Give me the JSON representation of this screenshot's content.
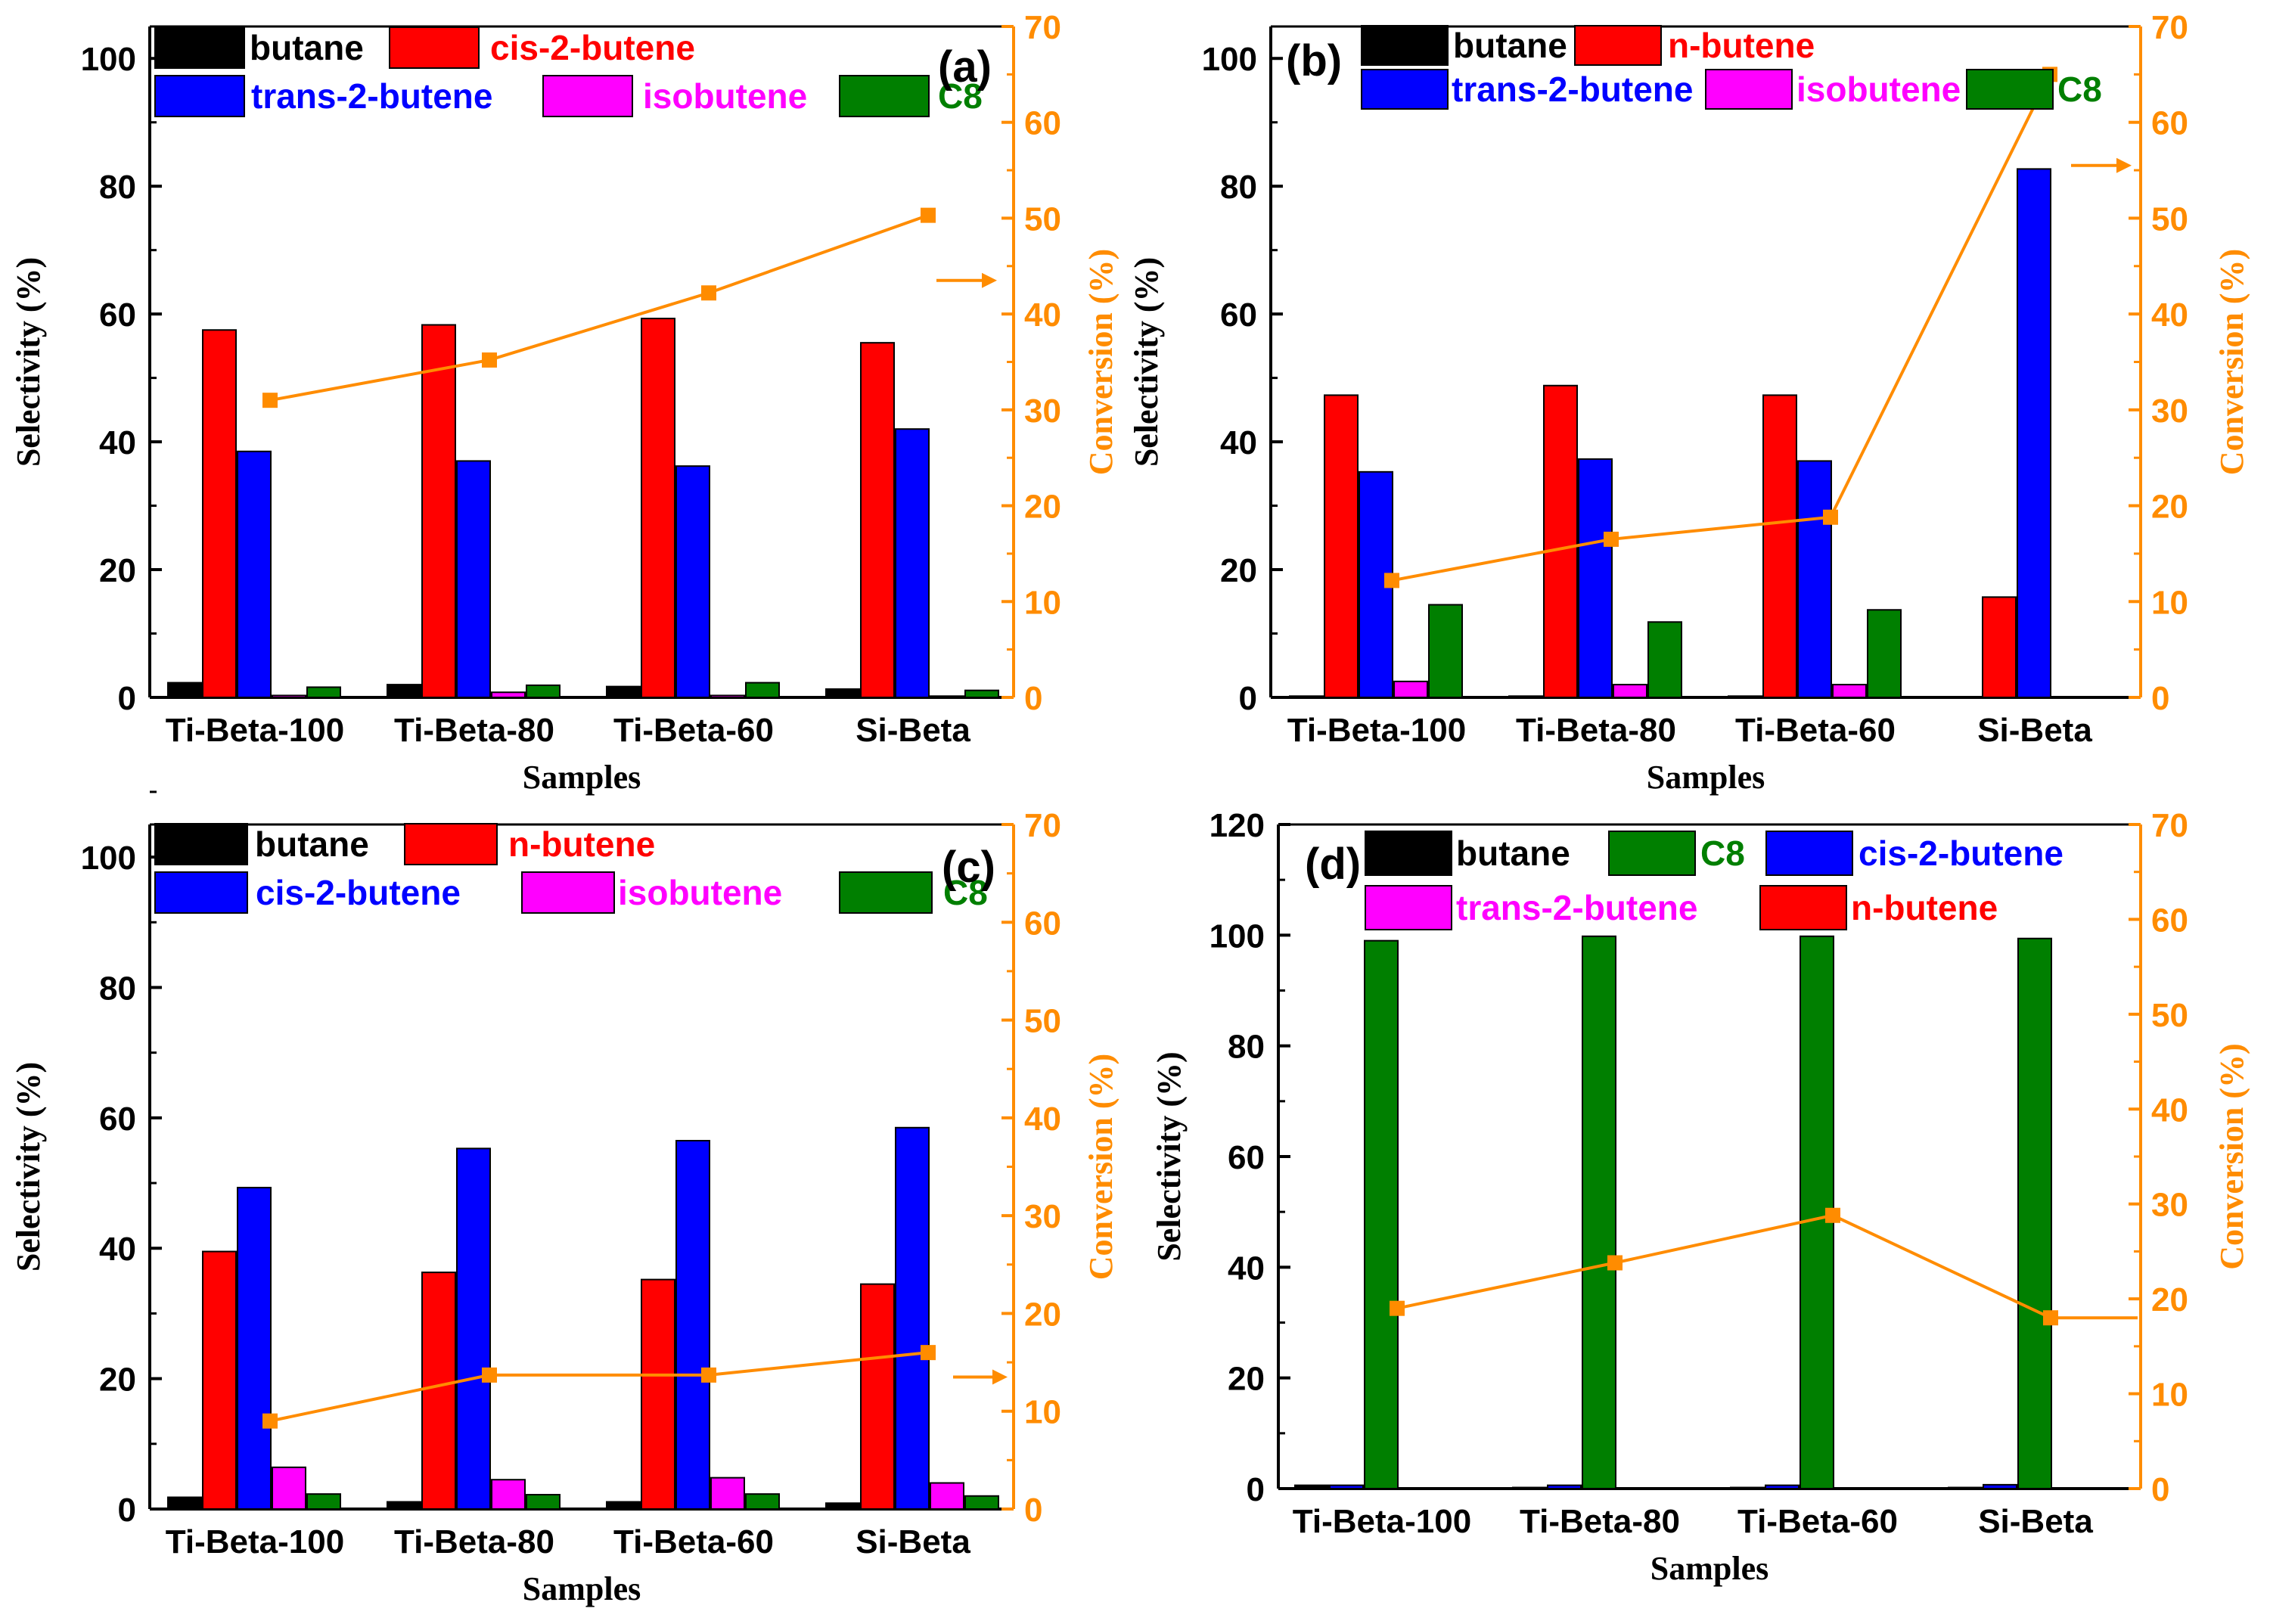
{
  "figure": {
    "colors": {
      "butane": "#000000",
      "cis2": "#ff0000",
      "trans2": "#0000ff",
      "isobutene": "#ff00ff",
      "c8": "#007f00",
      "conversion": "#ff8c00",
      "axis": "#000000"
    }
  },
  "chart_data": [
    {
      "type": "bar",
      "panel_label": "(a)",
      "categories": [
        "Ti-Beta-100",
        "Ti-Beta-80",
        "Ti-Beta-60",
        "Si-Beta"
      ],
      "xlabel": "Samples",
      "ylabel": "Selectivity (%)",
      "y2label": "Conversion (%)",
      "ylim": [
        0,
        105
      ],
      "yticks": [
        0,
        20,
        40,
        60,
        80,
        100
      ],
      "y2lim": [
        0,
        70
      ],
      "y2ticks": [
        0,
        10,
        20,
        30,
        40,
        50,
        60,
        70
      ],
      "series": [
        {
          "name": "butane",
          "color": "#000000",
          "values": [
            2.3,
            2.0,
            1.7,
            1.3
          ]
        },
        {
          "name": "cis-2-butene",
          "color": "#ff0000",
          "values": [
            57.5,
            58.3,
            59.3,
            55.5
          ]
        },
        {
          "name": "trans-2-butene",
          "color": "#0000ff",
          "values": [
            38.5,
            37.0,
            36.2,
            42.0
          ]
        },
        {
          "name": "isobutene",
          "color": "#ff00ff",
          "values": [
            0.3,
            0.8,
            0.3,
            0.2
          ]
        },
        {
          "name": "C8",
          "color": "#007f00",
          "values": [
            1.6,
            1.9,
            2.3,
            1.1
          ]
        }
      ],
      "conversion": {
        "name": "Conversion",
        "color": "#ff8c00",
        "values": [
          31.0,
          35.2,
          42.2,
          50.3
        ]
      },
      "arrow_at": 43.5
    },
    {
      "type": "bar",
      "panel_label": "(b)",
      "categories": [
        "Ti-Beta-100",
        "Ti-Beta-80",
        "Ti-Beta-60",
        "Si-Beta"
      ],
      "xlabel": "Samples",
      "ylabel": "Selectivity (%)",
      "y2label": "Conversion (%)",
      "ylim": [
        0,
        105
      ],
      "yticks": [
        0,
        20,
        40,
        60,
        80,
        100
      ],
      "y2lim": [
        0,
        70
      ],
      "y2ticks": [
        0,
        10,
        20,
        30,
        40,
        50,
        60,
        70
      ],
      "series": [
        {
          "name": "butane",
          "color": "#000000",
          "values": [
            0.2,
            0.2,
            0.2,
            0.1
          ]
        },
        {
          "name": "n-butene",
          "color": "#ff0000",
          "values": [
            47.3,
            48.8,
            47.3,
            15.7
          ]
        },
        {
          "name": "trans-2-butene",
          "color": "#0000ff",
          "values": [
            35.3,
            37.3,
            37.0,
            82.7
          ]
        },
        {
          "name": "isobutene",
          "color": "#ff00ff",
          "values": [
            2.5,
            2.0,
            2.0,
            0.1
          ]
        },
        {
          "name": "C8",
          "color": "#007f00",
          "values": [
            14.5,
            11.8,
            13.7,
            0.1
          ]
        }
      ],
      "conversion": {
        "name": "Conversion",
        "color": "#ff8c00",
        "values": [
          12.2,
          16.5,
          18.8,
          65.0
        ]
      },
      "arrow_at": 55.5
    },
    {
      "type": "bar",
      "panel_label": "(c)",
      "categories": [
        "Ti-Beta-100",
        "Ti-Beta-80",
        "Ti-Beta-60",
        "Si-Beta"
      ],
      "xlabel": "Samples",
      "ylabel": "Selectivity (%)",
      "y2label": "Conversion (%)",
      "ylim": [
        0,
        105
      ],
      "yticks": [
        0,
        20,
        40,
        60,
        80,
        100
      ],
      "y2lim": [
        0,
        70
      ],
      "y2ticks": [
        0,
        10,
        20,
        30,
        40,
        50,
        60,
        70
      ],
      "series": [
        {
          "name": "butane",
          "color": "#000000",
          "values": [
            1.8,
            1.1,
            1.1,
            0.9
          ]
        },
        {
          "name": "n-butene",
          "color": "#ff0000",
          "values": [
            39.5,
            36.3,
            35.2,
            34.5
          ]
        },
        {
          "name": "cis-2-butene",
          "color": "#0000ff",
          "values": [
            49.3,
            55.3,
            56.5,
            58.5
          ]
        },
        {
          "name": "isobutene",
          "color": "#ff00ff",
          "values": [
            6.4,
            4.5,
            4.8,
            4.0
          ]
        },
        {
          "name": "C8",
          "color": "#007f00",
          "values": [
            2.3,
            2.2,
            2.3,
            2.0
          ]
        }
      ],
      "conversion": {
        "name": "Conversion",
        "color": "#ff8c00",
        "values": [
          9.0,
          13.7,
          13.7,
          16.0
        ]
      },
      "arrow_at": 13.5
    },
    {
      "type": "bar",
      "panel_label": "(d)",
      "categories": [
        "Ti-Beta-100",
        "Ti-Beta-80",
        "Ti-Beta-60",
        "Si-Beta"
      ],
      "xlabel": "Samples",
      "ylabel": "Selectivity (%)",
      "y2label": "Conversion (%)",
      "ylim": [
        0,
        120
      ],
      "yticks": [
        0,
        20,
        40,
        60,
        80,
        100,
        120
      ],
      "y2lim": [
        0,
        70
      ],
      "y2ticks": [
        0,
        10,
        20,
        30,
        40,
        50,
        60,
        70
      ],
      "series": [
        {
          "name": "butane",
          "color": "#000000",
          "values": [
            0.6,
            0.2,
            0.2,
            0.2
          ]
        },
        {
          "name": "cis-2-butene",
          "color": "#0000ff",
          "values": [
            0.6,
            0.6,
            0.6,
            0.7
          ]
        },
        {
          "name": "C8",
          "color": "#007f00",
          "values": [
            99.0,
            99.8,
            99.8,
            99.4
          ]
        },
        {
          "name": "trans-2-butene",
          "color": "#ff00ff",
          "values": [
            0,
            0,
            0,
            0
          ]
        },
        {
          "name": "n-butene",
          "color": "#ff0000",
          "values": [
            0,
            0,
            0,
            0
          ]
        }
      ],
      "legend_order": [
        "butane",
        "C8",
        "cis-2-butene",
        "trans-2-butene",
        "n-butene"
      ],
      "conversion": {
        "name": "Conversion",
        "color": "#ff8c00",
        "values": [
          19.0,
          23.8,
          28.8,
          18.0
        ]
      },
      "conversion_tail": 18.0
    }
  ]
}
